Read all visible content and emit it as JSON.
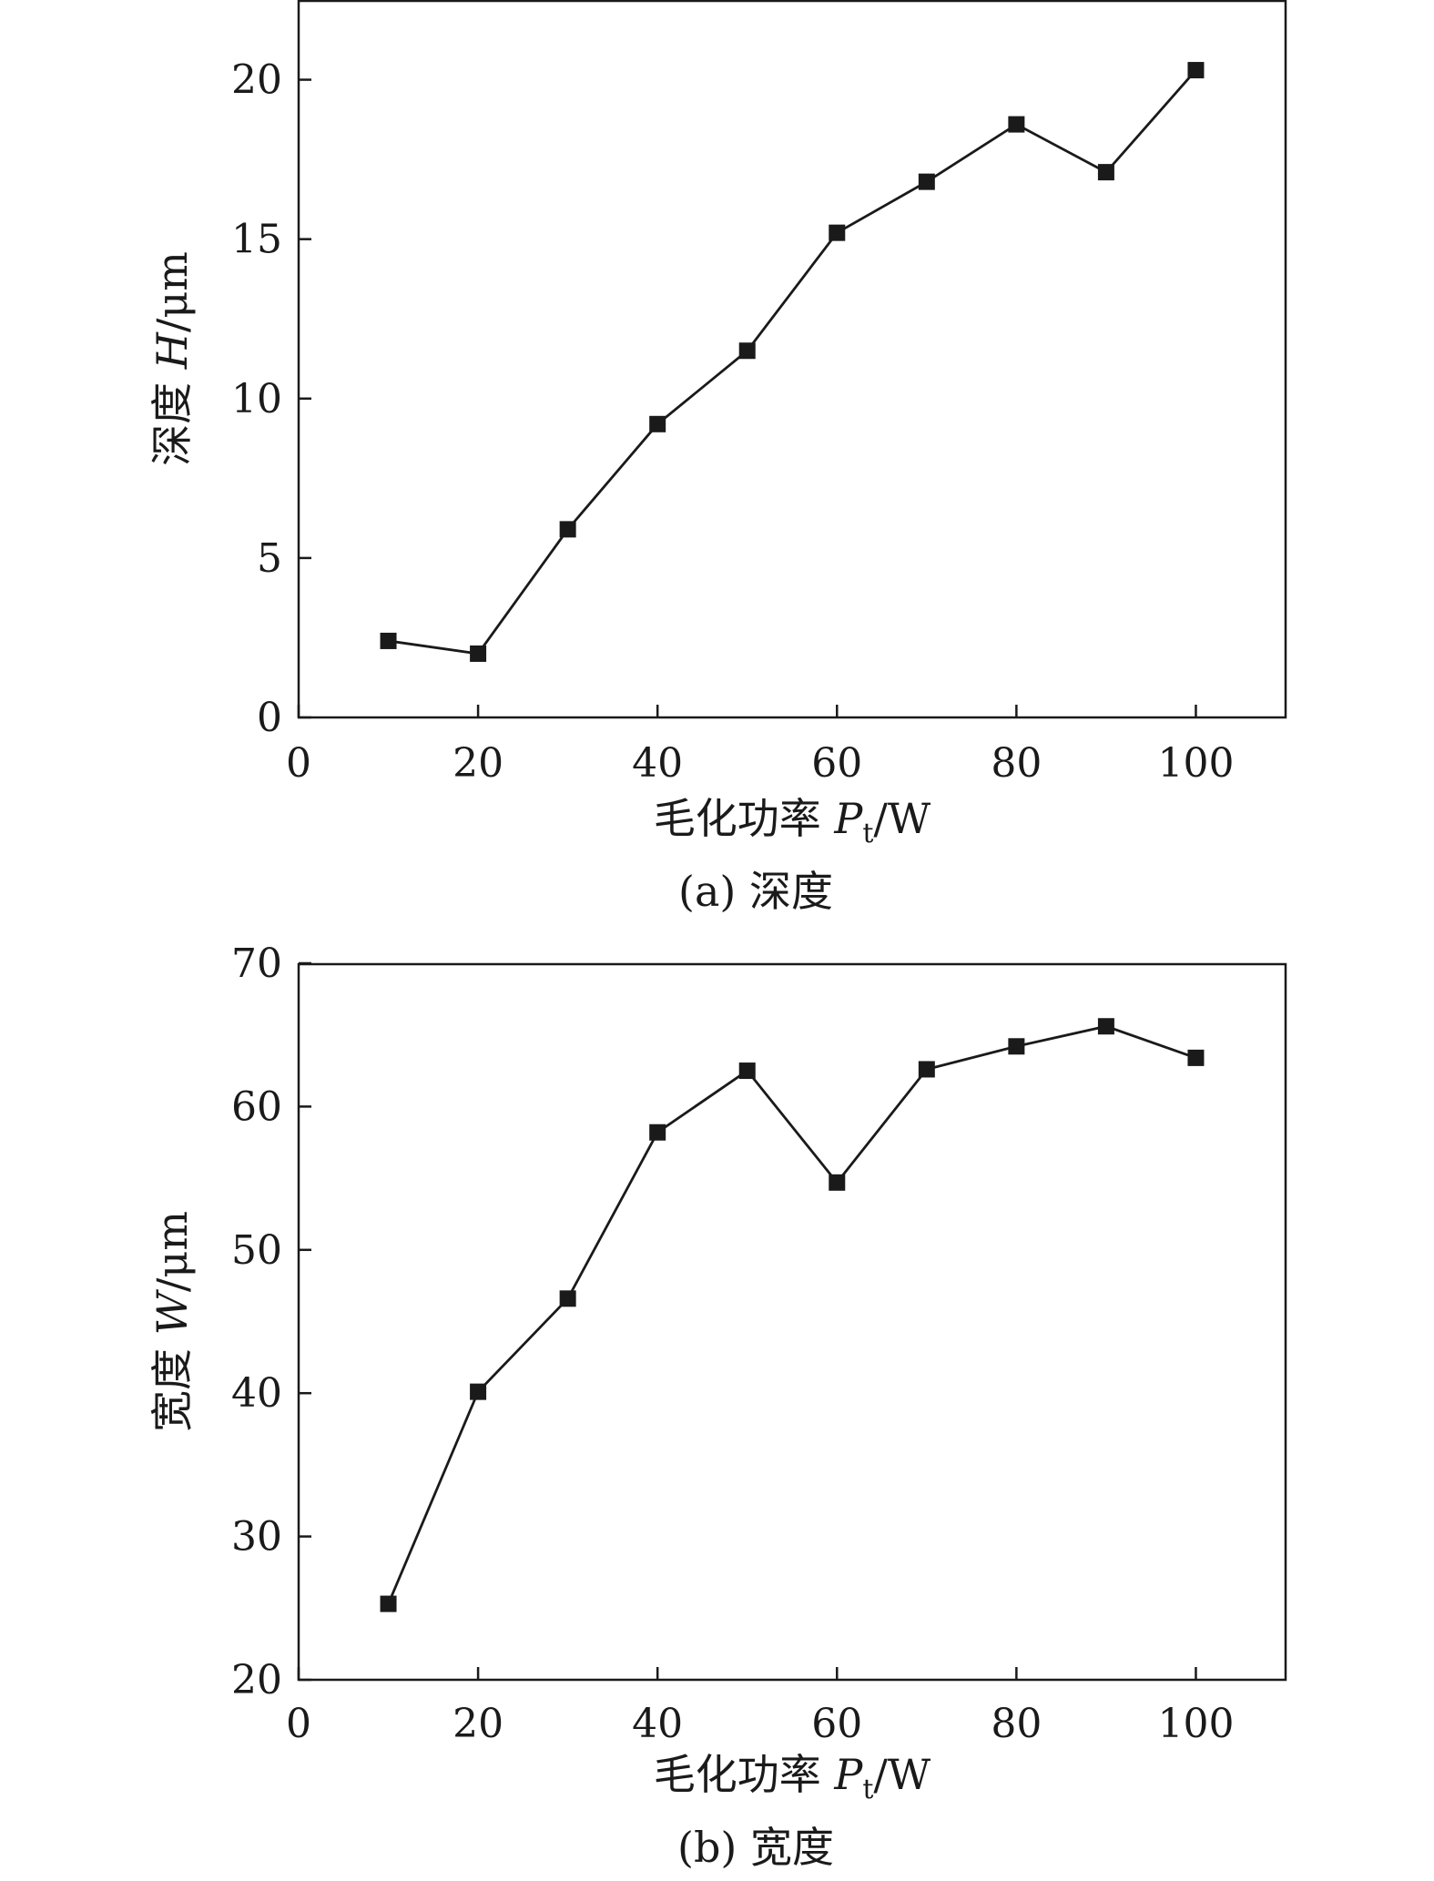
{
  "chart_data": [
    {
      "type": "line",
      "x": [
        10,
        20,
        30,
        40,
        50,
        60,
        70,
        80,
        90,
        100
      ],
      "y": [
        2.4,
        2.0,
        5.9,
        9.2,
        11.5,
        15.2,
        16.8,
        18.6,
        17.1,
        20.3
      ],
      "xlim": [
        0,
        110
      ],
      "ylim": [
        0,
        22.5
      ],
      "xticks": [
        0,
        20,
        40,
        60,
        80,
        100
      ],
      "yticks": [
        0,
        5,
        10,
        15,
        20
      ],
      "xlabel": {
        "text": "毛化功率",
        "var": "P",
        "sub": "t",
        "unit": "/W"
      },
      "ylabel": {
        "text": "深度",
        "var": "H",
        "unit": "/μm"
      },
      "caption": "(a) 深度",
      "grid": false,
      "marker": "square",
      "color": "#1a1a1a"
    },
    {
      "type": "line",
      "x": [
        10,
        20,
        30,
        40,
        50,
        60,
        70,
        80,
        90,
        100
      ],
      "y": [
        25.3,
        40.1,
        46.6,
        58.2,
        62.5,
        54.7,
        62.6,
        64.2,
        65.6,
        63.4
      ],
      "xlim": [
        0,
        110
      ],
      "ylim": [
        20,
        70
      ],
      "xticks": [
        0,
        20,
        40,
        60,
        80,
        100
      ],
      "yticks": [
        20,
        30,
        40,
        50,
        60,
        70
      ],
      "xlabel": {
        "text": "毛化功率",
        "var": "P",
        "sub": "t",
        "unit": "/W"
      },
      "ylabel": {
        "text": "宽度",
        "var": "W",
        "unit": "/μm"
      },
      "caption": "(b) 宽度",
      "grid": false,
      "marker": "square",
      "color": "#1a1a1a"
    }
  ]
}
